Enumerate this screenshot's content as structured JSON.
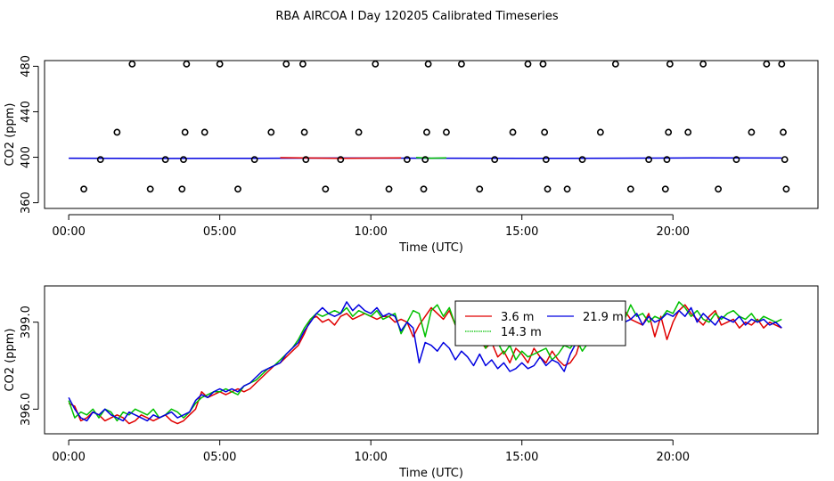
{
  "title": "RBA AIRCOA I  Day 120205  Calibrated Timeseries",
  "colors": {
    "3.6 m": "#e00000",
    "14.3 m": "#00c000",
    "21.9 m": "#0000e0",
    "axes": "#000000"
  },
  "chart_data": [
    {
      "type": "scatter",
      "xlabel": "Time (UTC)",
      "ylabel": "CO2 (ppm)",
      "xlim": [
        -0.8,
        24.8
      ],
      "ylim": [
        355,
        485
      ],
      "xticks": [
        0,
        5,
        10,
        15,
        20
      ],
      "xtick_labels": [
        "00:00",
        "05:00",
        "10:00",
        "15:00",
        "20:00"
      ],
      "yticks": [
        360,
        400,
        440,
        480
      ],
      "ytick_labels": [
        "360",
        "400",
        "440",
        "480"
      ],
      "points": {
        "x": [
          0.5,
          1.05,
          1.6,
          2.1,
          2.7,
          3.2,
          3.75,
          3.8,
          3.85,
          3.9,
          4.5,
          5.0,
          5.6,
          6.15,
          6.7,
          7.2,
          7.75,
          7.8,
          7.85,
          8.5,
          9.0,
          9.6,
          10.15,
          10.6,
          11.2,
          11.75,
          11.8,
          11.85,
          11.9,
          12.5,
          13.0,
          13.6,
          14.1,
          14.7,
          15.2,
          15.7,
          15.75,
          15.8,
          15.85,
          16.5,
          17.0,
          17.6,
          18.1,
          18.6,
          19.2,
          19.75,
          19.8,
          19.85,
          19.9,
          20.5,
          21.0,
          21.5,
          22.1,
          22.6,
          23.1,
          23.6,
          23.65,
          23.7,
          23.75
        ],
        "y": [
          372,
          398,
          422,
          482,
          372,
          398,
          372,
          398,
          422,
          482,
          422,
          482,
          372,
          398,
          422,
          482,
          482,
          422,
          398,
          372,
          398,
          422,
          482,
          372,
          398,
          372,
          398,
          422,
          482,
          422,
          482,
          372,
          398,
          422,
          482,
          482,
          422,
          398,
          372,
          372,
          398,
          422,
          482,
          372,
          398,
          372,
          398,
          422,
          482,
          422,
          482,
          372,
          398,
          422,
          482,
          482,
          422,
          398,
          372
        ]
      },
      "series": [
        {
          "name": "21.9 m",
          "x": [
            0,
            3,
            6,
            9,
            12,
            15,
            18,
            21,
            23.6
          ],
          "values": [
            399.2,
            398.9,
            399.1,
            399.3,
            399.2,
            399.0,
            399.2,
            399.4,
            399.3
          ]
        },
        {
          "name": "3.6 m",
          "x": [
            7,
            9,
            11
          ],
          "values": [
            399.6,
            399.1,
            399.4
          ]
        },
        {
          "name": "14.3 m",
          "x": [
            11.5,
            12,
            12.5
          ],
          "values": [
            399.7,
            399.2,
            399.5
          ]
        }
      ]
    },
    {
      "type": "line",
      "xlabel": "Time (UTC)",
      "ylabel": "CO2 (ppm)",
      "xlim": [
        -0.8,
        24.8
      ],
      "ylim": [
        395.15,
        400.25
      ],
      "xticks": [
        0,
        5,
        10,
        15,
        20
      ],
      "xtick_labels": [
        "00:00",
        "05:00",
        "10:00",
        "15:00",
        "20:00"
      ],
      "yticks": [
        396,
        399
      ],
      "ytick_labels": [
        "396.0",
        "399.0"
      ],
      "legend": {
        "position": "top-center",
        "entries": [
          "3.6 m",
          "14.3 m",
          "21.9 m"
        ]
      },
      "x": [
        0,
        0.2,
        0.4,
        0.6,
        0.8,
        1.0,
        1.2,
        1.4,
        1.6,
        1.8,
        2.0,
        2.2,
        2.4,
        2.6,
        2.8,
        3.0,
        3.2,
        3.4,
        3.6,
        3.8,
        4.0,
        4.2,
        4.4,
        4.6,
        4.8,
        5.0,
        5.2,
        5.4,
        5.6,
        5.8,
        6.0,
        6.2,
        6.4,
        6.6,
        6.8,
        7.0,
        7.2,
        7.4,
        7.6,
        7.8,
        8.0,
        8.2,
        8.4,
        8.6,
        8.8,
        9.0,
        9.2,
        9.4,
        9.6,
        9.8,
        10.0,
        10.2,
        10.4,
        10.6,
        10.8,
        11.0,
        11.2,
        11.4,
        11.6,
        11.8,
        12.0,
        12.2,
        12.4,
        12.6,
        12.8,
        13.0,
        13.2,
        13.4,
        13.6,
        13.8,
        14.0,
        14.2,
        14.4,
        14.6,
        14.8,
        15.0,
        15.2,
        15.4,
        15.6,
        15.8,
        16.0,
        16.2,
        16.4,
        16.6,
        16.8,
        17.0,
        17.2,
        17.4,
        17.6,
        17.8,
        18.0,
        18.2,
        18.4,
        18.6,
        18.8,
        19.0,
        19.2,
        19.4,
        19.6,
        19.8,
        20.0,
        20.2,
        20.4,
        20.6,
        20.8,
        21.0,
        21.2,
        21.4,
        21.6,
        21.8,
        22.0,
        22.2,
        22.4,
        22.6,
        22.8,
        23.0,
        23.2,
        23.4,
        23.6
      ],
      "series": [
        {
          "name": "3.6 m",
          "values": [
            396.2,
            396.1,
            395.6,
            395.7,
            395.9,
            395.8,
            395.6,
            395.7,
            395.8,
            395.7,
            395.5,
            395.6,
            395.8,
            395.7,
            395.6,
            395.7,
            395.8,
            395.6,
            395.5,
            395.6,
            395.8,
            396.0,
            396.6,
            396.4,
            396.5,
            396.6,
            396.5,
            396.6,
            396.7,
            396.6,
            396.7,
            396.9,
            397.1,
            397.3,
            397.5,
            397.6,
            397.8,
            398.0,
            398.2,
            398.6,
            399.1,
            399.2,
            399.0,
            399.1,
            398.9,
            399.2,
            399.3,
            399.1,
            399.2,
            399.3,
            399.2,
            399.1,
            399.2,
            399.2,
            399.0,
            399.1,
            399.0,
            398.5,
            398.9,
            399.2,
            399.5,
            399.3,
            399.1,
            399.4,
            398.9,
            398.2,
            398.5,
            398.3,
            398.4,
            398.1,
            398.3,
            397.8,
            398.0,
            397.6,
            398.1,
            397.9,
            397.6,
            398.1,
            397.8,
            397.6,
            398.0,
            397.7,
            397.5,
            397.6,
            397.9,
            398.6,
            399.0,
            398.8,
            398.3,
            398.7,
            399.3,
            399.6,
            399.4,
            399.1,
            399.0,
            398.9,
            399.3,
            398.5,
            399.2,
            398.4,
            399.0,
            399.4,
            399.6,
            399.3,
            399.1,
            398.9,
            399.2,
            399.4,
            398.9,
            399.0,
            399.1,
            398.8,
            399.0,
            398.9,
            399.1,
            398.8,
            399.0,
            398.9,
            398.8
          ]
        },
        {
          "name": "14.3 m",
          "values": [
            396.3,
            395.7,
            395.9,
            395.8,
            396.0,
            395.7,
            396.0,
            395.9,
            395.6,
            395.9,
            395.8,
            396.0,
            395.9,
            395.8,
            396.0,
            395.7,
            395.8,
            396.0,
            395.9,
            395.7,
            395.9,
            396.2,
            396.4,
            396.5,
            396.6,
            396.6,
            396.7,
            396.6,
            396.5,
            396.8,
            396.9,
            397.0,
            397.2,
            397.4,
            397.5,
            397.7,
            397.9,
            398.1,
            398.4,
            398.8,
            399.1,
            399.3,
            399.2,
            399.3,
            399.4,
            399.3,
            399.5,
            399.2,
            399.4,
            399.3,
            399.2,
            399.4,
            399.1,
            399.2,
            399.3,
            398.6,
            399.0,
            399.4,
            399.3,
            398.5,
            399.4,
            399.6,
            399.2,
            399.5,
            398.9,
            398.6,
            398.3,
            398.4,
            398.8,
            398.1,
            398.5,
            398.3,
            397.9,
            398.2,
            397.7,
            398.0,
            397.8,
            397.9,
            398.0,
            398.1,
            397.7,
            397.9,
            398.2,
            398.1,
            398.4,
            398.0,
            398.3,
            398.6,
            398.4,
            398.8,
            399.3,
            399.4,
            399.1,
            399.6,
            399.2,
            399.3,
            399.0,
            399.2,
            399.1,
            399.4,
            399.3,
            399.7,
            399.5,
            399.2,
            399.4,
            399.1,
            399.0,
            399.3,
            399.1,
            399.3,
            399.4,
            399.2,
            399.1,
            399.3,
            399.0,
            399.2,
            399.1,
            399.0,
            399.1
          ]
        },
        {
          "name": "21.9 m",
          "values": [
            396.4,
            396.0,
            395.7,
            395.6,
            395.9,
            395.8,
            396.0,
            395.8,
            395.7,
            395.6,
            395.9,
            395.8,
            395.7,
            395.6,
            395.8,
            395.7,
            395.8,
            395.9,
            395.7,
            395.8,
            395.9,
            396.3,
            396.5,
            396.4,
            396.6,
            396.7,
            396.6,
            396.7,
            396.6,
            396.8,
            396.9,
            397.1,
            397.3,
            397.4,
            397.5,
            397.6,
            397.9,
            398.1,
            398.3,
            398.7,
            399.0,
            399.3,
            399.5,
            399.3,
            399.2,
            399.3,
            399.7,
            399.4,
            399.6,
            399.4,
            399.3,
            399.5,
            399.2,
            399.3,
            399.2,
            398.7,
            399.0,
            398.8,
            397.6,
            398.3,
            398.2,
            398.0,
            398.3,
            398.1,
            397.7,
            398.0,
            397.8,
            397.5,
            397.9,
            397.5,
            397.7,
            397.4,
            397.6,
            397.3,
            397.4,
            397.6,
            397.4,
            397.5,
            397.8,
            397.5,
            397.7,
            397.6,
            397.3,
            397.9,
            398.3,
            398.5,
            398.2,
            398.7,
            398.5,
            399.0,
            399.2,
            399.4,
            399.0,
            399.1,
            399.3,
            398.9,
            399.2,
            399.0,
            399.1,
            399.3,
            399.2,
            399.4,
            399.2,
            399.5,
            399.0,
            399.3,
            399.1,
            398.9,
            399.2,
            399.1,
            399.0,
            399.2,
            398.9,
            399.1,
            399.0,
            399.1,
            398.9,
            399.0,
            398.8
          ]
        }
      ]
    }
  ]
}
